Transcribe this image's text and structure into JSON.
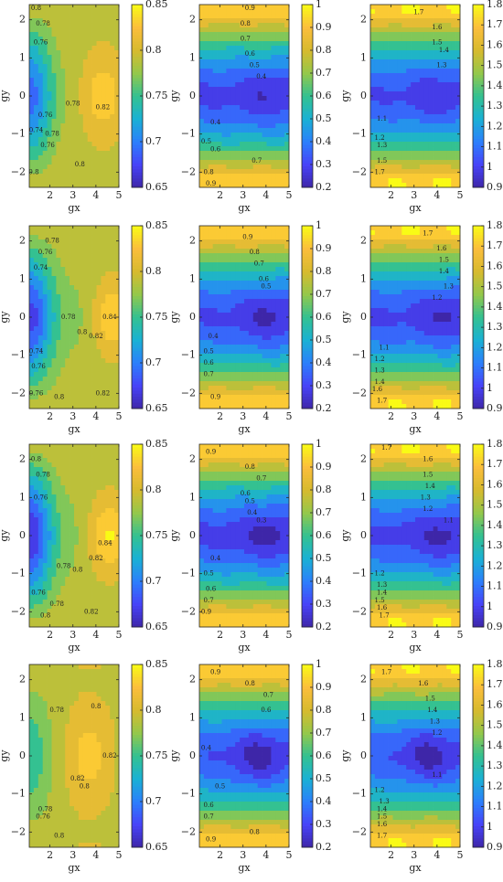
{
  "figure": {
    "rows": 4,
    "cols": 3,
    "xlabel": "gx",
    "ylabel": "gy"
  },
  "palette": [
    "#3e26a8",
    "#4743f8",
    "#2c7ffc",
    "#1ab1d4",
    "#34c191",
    "#94c84b",
    "#d7ba2e",
    "#fbbe3c",
    "#f9fb15"
  ],
  "columns": [
    {
      "clim": [
        0.65,
        0.85
      ],
      "cbar_ticks": [
        0.65,
        0.7,
        0.75,
        0.8,
        0.85
      ],
      "cbar_labels": [
        "0.65",
        "0.7",
        "0.75",
        "0.8",
        "0.85"
      ]
    },
    {
      "clim": [
        0.2,
        1.0
      ],
      "cbar_ticks": [
        0.2,
        0.3,
        0.4,
        0.5,
        0.6,
        0.7,
        0.8,
        0.9,
        1.0
      ],
      "cbar_labels": [
        "0.2",
        "0.3",
        "0.4",
        "0.5",
        "0.6",
        "0.7",
        "0.8",
        "0.9",
        "1"
      ]
    },
    {
      "clim": [
        0.9,
        1.8
      ],
      "cbar_ticks": [
        0.9,
        1.0,
        1.1,
        1.2,
        1.3,
        1.4,
        1.5,
        1.6,
        1.7,
        1.8
      ],
      "cbar_labels": [
        "0.9",
        "1",
        "1.1",
        "1.2",
        "1.3",
        "1.4",
        "1.5",
        "1.6",
        "1.7",
        "1.8"
      ]
    }
  ],
  "chart_data": [
    {
      "type": "heatmap",
      "row": 1,
      "col": 1,
      "model": "c1",
      "center_value": 0.69,
      "edge_value": 0.8,
      "side_min": 0.78,
      "right_value": 0.83,
      "hot_x": 4.3,
      "hot_value": 0.84,
      "blob_value": null,
      "contour_labels": [
        {
          "v": "0.8",
          "x": 1.4,
          "y": 2.3
        },
        {
          "v": "0.78",
          "x": 1.7,
          "y": 1.9
        },
        {
          "v": "0.76",
          "x": 1.6,
          "y": 1.4
        },
        {
          "v": "0.76",
          "x": 1.8,
          "y": -0.5
        },
        {
          "v": "0.74",
          "x": 1.4,
          "y": -0.9
        },
        {
          "v": "0.78",
          "x": 3.0,
          "y": -0.2
        },
        {
          "v": "0.78",
          "x": 2.1,
          "y": -1.0
        },
        {
          "v": "0.76",
          "x": 1.9,
          "y": -1.3
        },
        {
          "v": "0.82",
          "x": 4.3,
          "y": -0.3
        },
        {
          "v": "0.8",
          "x": 3.3,
          "y": -1.8
        },
        {
          "v": "0.8",
          "x": 1.3,
          "y": -2.0
        }
      ],
      "xlim": [
        1.1,
        5.0
      ],
      "ylim": [
        -2.4,
        2.4
      ],
      "xticks": [
        2,
        3,
        4,
        5
      ],
      "yticks": [
        -2,
        -1,
        0,
        1,
        2
      ]
    },
    {
      "type": "heatmap",
      "row": 1,
      "col": 2,
      "model": "c2",
      "center_value": 0.3,
      "edge_value": 0.95,
      "side_min": null,
      "right_value": 0.25,
      "hot_x": 4.0,
      "hot_value": 0.24,
      "blob_value": null,
      "contour_labels": [
        {
          "v": "0.9",
          "x": 3.3,
          "y": 2.3
        },
        {
          "v": "0.8",
          "x": 3.1,
          "y": 1.9
        },
        {
          "v": "0.7",
          "x": 3.1,
          "y": 1.5
        },
        {
          "v": "0.6",
          "x": 3.3,
          "y": 1.1
        },
        {
          "v": "0.5",
          "x": 3.5,
          "y": 0.8
        },
        {
          "v": "0.4",
          "x": 3.8,
          "y": 0.5
        },
        {
          "v": "0.4",
          "x": 1.8,
          "y": -0.7
        },
        {
          "v": "0.5",
          "x": 1.4,
          "y": -1.2
        },
        {
          "v": "0.6",
          "x": 1.8,
          "y": -1.4
        },
        {
          "v": "0.7",
          "x": 3.6,
          "y": -1.7
        },
        {
          "v": "0.8",
          "x": 1.5,
          "y": -2.0
        },
        {
          "v": "0.9",
          "x": 1.6,
          "y": -2.3
        }
      ],
      "xlim": [
        1.1,
        5.0
      ],
      "ylim": [
        -2.4,
        2.4
      ],
      "xticks": [
        2,
        3,
        4,
        5
      ],
      "yticks": [
        -2,
        -1,
        0,
        1,
        2
      ]
    },
    {
      "type": "heatmap",
      "row": 1,
      "col": 3,
      "model": "c3",
      "center_value": 1.03,
      "edge_value": 1.75,
      "side_min": null,
      "right_value": 0.98,
      "hot_x": 4.0,
      "hot_value": 0.96,
      "blob_value": null,
      "contour_labels": [
        {
          "v": "1.7",
          "x": 3.2,
          "y": 2.2
        },
        {
          "v": "1.6",
          "x": 4.0,
          "y": 1.8
        },
        {
          "v": "1.5",
          "x": 4.0,
          "y": 1.4
        },
        {
          "v": "1.4",
          "x": 4.3,
          "y": 1.2
        },
        {
          "v": "1.3",
          "x": 4.2,
          "y": 0.8
        },
        {
          "v": "1.1",
          "x": 1.6,
          "y": -0.6
        },
        {
          "v": "1.2",
          "x": 1.5,
          "y": -1.1
        },
        {
          "v": "1.3",
          "x": 1.6,
          "y": -1.3
        },
        {
          "v": "1.5",
          "x": 1.6,
          "y": -1.7
        },
        {
          "v": "1.7",
          "x": 1.5,
          "y": -2.0
        }
      ],
      "xlim": [
        1.1,
        5.0
      ],
      "ylim": [
        -2.4,
        2.4
      ],
      "xticks": [
        2,
        3,
        4,
        5
      ],
      "yticks": [
        -2,
        -1,
        0,
        1,
        2
      ]
    },
    {
      "type": "heatmap",
      "row": 2,
      "col": 1,
      "model": "c1",
      "center_value": 0.67,
      "edge_value": 0.8,
      "side_min": 0.77,
      "right_value": 0.83,
      "hot_x": 4.8,
      "hot_value": 0.845,
      "blob_value": null,
      "contour_labels": [
        {
          "v": "0.78",
          "x": 2.1,
          "y": 2.0
        },
        {
          "v": "0.76",
          "x": 1.8,
          "y": 1.7
        },
        {
          "v": "0.74",
          "x": 1.6,
          "y": 1.3
        },
        {
          "v": "0.74",
          "x": 1.4,
          "y": -0.9
        },
        {
          "v": "0.76",
          "x": 1.5,
          "y": -1.3
        },
        {
          "v": "0.78",
          "x": 2.8,
          "y": 0.0
        },
        {
          "v": "0.8",
          "x": 3.4,
          "y": -0.4
        },
        {
          "v": "0.82",
          "x": 4.0,
          "y": -0.5
        },
        {
          "v": "0.84",
          "x": 4.6,
          "y": 0.0
        },
        {
          "v": "0.76",
          "x": 1.4,
          "y": -2.0
        },
        {
          "v": "0.8",
          "x": 2.4,
          "y": -2.1
        },
        {
          "v": "0.82",
          "x": 4.3,
          "y": -2.0
        }
      ],
      "xlim": [
        1.1,
        5.0
      ],
      "ylim": [
        -2.4,
        2.4
      ],
      "xticks": [
        2,
        3,
        4,
        5
      ],
      "yticks": [
        -2,
        -1,
        0,
        1,
        2
      ]
    },
    {
      "type": "heatmap",
      "row": 2,
      "col": 2,
      "model": "c2",
      "center_value": 0.31,
      "edge_value": 0.95,
      "side_min": null,
      "right_value": 0.24,
      "hot_x": 4.1,
      "hot_value": 0.22,
      "blob_value": null,
      "contour_labels": [
        {
          "v": "0.9",
          "x": 3.2,
          "y": 2.1
        },
        {
          "v": "0.8",
          "x": 3.5,
          "y": 1.7
        },
        {
          "v": "0.7",
          "x": 3.7,
          "y": 1.4
        },
        {
          "v": "0.6",
          "x": 3.9,
          "y": 1.0
        },
        {
          "v": "0.5",
          "x": 4.0,
          "y": 0.8
        },
        {
          "v": "0.4",
          "x": 1.7,
          "y": -0.5
        },
        {
          "v": "0.5",
          "x": 1.5,
          "y": -0.9
        },
        {
          "v": "0.6",
          "x": 1.5,
          "y": -1.2
        },
        {
          "v": "0.7",
          "x": 1.5,
          "y": -1.5
        },
        {
          "v": "0.9",
          "x": 1.8,
          "y": -2.1
        }
      ],
      "xlim": [
        1.1,
        5.0
      ],
      "ylim": [
        -2.4,
        2.4
      ],
      "xticks": [
        2,
        3,
        4,
        5
      ],
      "yticks": [
        -2,
        -1,
        0,
        1,
        2
      ]
    },
    {
      "type": "heatmap",
      "row": 2,
      "col": 3,
      "model": "c3",
      "center_value": 1.02,
      "edge_value": 1.75,
      "side_min": null,
      "right_value": 0.95,
      "hot_x": 4.4,
      "hot_value": 0.93,
      "blob_value": null,
      "contour_labels": [
        {
          "v": "1.7",
          "x": 3.6,
          "y": 2.2
        },
        {
          "v": "1.6",
          "x": 4.2,
          "y": 1.8
        },
        {
          "v": "1.5",
          "x": 4.3,
          "y": 1.5
        },
        {
          "v": "1.4",
          "x": 4.3,
          "y": 1.2
        },
        {
          "v": "1.3",
          "x": 4.5,
          "y": 0.8
        },
        {
          "v": "1.2",
          "x": 4.0,
          "y": 0.5
        },
        {
          "v": "1.1",
          "x": 1.7,
          "y": -0.8
        },
        {
          "v": "1.2",
          "x": 1.5,
          "y": -1.1
        },
        {
          "v": "1.3",
          "x": 1.5,
          "y": -1.4
        },
        {
          "v": "1.4",
          "x": 1.5,
          "y": -1.7
        },
        {
          "v": "1.6",
          "x": 1.4,
          "y": -1.9
        },
        {
          "v": "1.7",
          "x": 1.6,
          "y": -2.2
        }
      ],
      "xlim": [
        1.1,
        5.0
      ],
      "ylim": [
        -2.4,
        2.4
      ],
      "xticks": [
        2,
        3,
        4,
        5
      ],
      "yticks": [
        -2,
        -1,
        0,
        1,
        2
      ]
    },
    {
      "type": "heatmap",
      "row": 3,
      "col": 1,
      "model": "c1",
      "center_value": 0.66,
      "edge_value": 0.8,
      "side_min": 0.77,
      "right_value": 0.83,
      "hot_x": 4.6,
      "hot_value": 0.85,
      "blob_value": null,
      "contour_labels": [
        {
          "v": "0.8",
          "x": 1.4,
          "y": 2.0
        },
        {
          "v": "0.78",
          "x": 1.7,
          "y": 1.6
        },
        {
          "v": "0.76",
          "x": 1.6,
          "y": 1.0
        },
        {
          "v": "0.78",
          "x": 2.6,
          "y": -0.8
        },
        {
          "v": "0.8",
          "x": 3.2,
          "y": -0.9
        },
        {
          "v": "0.82",
          "x": 4.0,
          "y": -0.6
        },
        {
          "v": "0.84",
          "x": 4.4,
          "y": -0.2
        },
        {
          "v": "0.76",
          "x": 1.5,
          "y": -1.5
        },
        {
          "v": "0.78",
          "x": 2.3,
          "y": -1.8
        },
        {
          "v": "0.8",
          "x": 1.8,
          "y": -2.1
        },
        {
          "v": "0.82",
          "x": 3.8,
          "y": -2.0
        }
      ],
      "xlim": [
        1.1,
        5.0
      ],
      "ylim": [
        -2.4,
        2.4
      ],
      "xticks": [
        2,
        3,
        4,
        5
      ],
      "yticks": [
        -2,
        -1,
        0,
        1,
        2
      ]
    },
    {
      "type": "heatmap",
      "row": 3,
      "col": 2,
      "model": "c2",
      "center_value": 0.3,
      "edge_value": 0.95,
      "side_min": null,
      "right_value": 0.24,
      "hot_x": 4.1,
      "hot_value": 0.21,
      "blob_value": 0.24,
      "contour_labels": [
        {
          "v": "0.9",
          "x": 1.6,
          "y": 2.2
        },
        {
          "v": "0.8",
          "x": 3.3,
          "y": 1.8
        },
        {
          "v": "0.7",
          "x": 3.8,
          "y": 1.5
        },
        {
          "v": "0.6",
          "x": 3.1,
          "y": 1.1
        },
        {
          "v": "0.5",
          "x": 3.3,
          "y": 0.9
        },
        {
          "v": "0.4",
          "x": 3.4,
          "y": 0.6
        },
        {
          "v": "0.3",
          "x": 3.8,
          "y": 0.4
        },
        {
          "v": "0.4",
          "x": 1.8,
          "y": -0.6
        },
        {
          "v": "0.5",
          "x": 1.5,
          "y": -1.0
        },
        {
          "v": "0.6",
          "x": 1.6,
          "y": -1.4
        },
        {
          "v": "0.7",
          "x": 1.5,
          "y": -1.7
        },
        {
          "v": "0.9",
          "x": 1.4,
          "y": -2.0
        }
      ],
      "xlim": [
        1.1,
        5.0
      ],
      "ylim": [
        -2.4,
        2.4
      ],
      "xticks": [
        2,
        3,
        4,
        5
      ],
      "yticks": [
        -2,
        -1,
        0,
        1,
        2
      ]
    },
    {
      "type": "heatmap",
      "row": 3,
      "col": 3,
      "model": "c3",
      "center_value": 1.02,
      "edge_value": 1.75,
      "side_min": null,
      "right_value": 0.95,
      "hot_x": 4.2,
      "hot_value": 0.92,
      "blob_value": 0.98,
      "contour_labels": [
        {
          "v": "1.7",
          "x": 1.8,
          "y": 2.3
        },
        {
          "v": "1.6",
          "x": 3.6,
          "y": 2.0
        },
        {
          "v": "1.5",
          "x": 3.6,
          "y": 1.6
        },
        {
          "v": "1.4",
          "x": 3.7,
          "y": 1.3
        },
        {
          "v": "1.3",
          "x": 3.5,
          "y": 1.0
        },
        {
          "v": "1.2",
          "x": 3.6,
          "y": 0.7
        },
        {
          "v": "1.1",
          "x": 4.5,
          "y": 0.4
        },
        {
          "v": "1.2",
          "x": 1.5,
          "y": -1.0
        },
        {
          "v": "1.3",
          "x": 1.6,
          "y": -1.3
        },
        {
          "v": "1.4",
          "x": 1.6,
          "y": -1.5
        },
        {
          "v": "1.5",
          "x": 1.5,
          "y": -1.7
        },
        {
          "v": "1.6",
          "x": 1.6,
          "y": -1.9
        },
        {
          "v": "1.7",
          "x": 1.7,
          "y": -2.1
        }
      ],
      "xlim": [
        1.1,
        5.0
      ],
      "ylim": [
        -2.4,
        2.4
      ],
      "xticks": [
        2,
        3,
        4,
        5
      ],
      "yticks": [
        -2,
        -1,
        0,
        1,
        2
      ]
    },
    {
      "type": "heatmap",
      "row": 4,
      "col": 1,
      "model": "c1",
      "center_value": 0.745,
      "edge_value": 0.8,
      "side_min": 0.79,
      "right_value": 0.82,
      "hot_x": 3.7,
      "hot_value": 0.835,
      "blob_value": null,
      "contour_labels": [
        {
          "v": "0.8",
          "x": 4.0,
          "y": 1.3
        },
        {
          "v": "0.78",
          "x": 2.3,
          "y": 1.2
        },
        {
          "v": "0.82",
          "x": 4.6,
          "y": 0.0
        },
        {
          "v": "0.82",
          "x": 3.2,
          "y": -0.6
        },
        {
          "v": "0.8",
          "x": 3.5,
          "y": -0.8
        },
        {
          "v": "0.78",
          "x": 1.8,
          "y": -1.4
        },
        {
          "v": "0.76",
          "x": 1.7,
          "y": -1.6
        },
        {
          "v": "0.8",
          "x": 2.4,
          "y": -2.1
        }
      ],
      "xlim": [
        1.1,
        5.0
      ],
      "ylim": [
        -2.4,
        2.4
      ],
      "xticks": [
        2,
        3,
        4,
        5
      ],
      "yticks": [
        -2,
        -1,
        0,
        1,
        2
      ]
    },
    {
      "type": "heatmap",
      "row": 4,
      "col": 2,
      "model": "c2",
      "center_value": 0.33,
      "edge_value": 0.95,
      "side_min": null,
      "right_value": 0.25,
      "hot_x": 3.7,
      "hot_value": 0.2,
      "blob_value": null,
      "contour_labels": [
        {
          "v": "0.9",
          "x": 1.8,
          "y": 2.2
        },
        {
          "v": "0.8",
          "x": 3.3,
          "y": 1.9
        },
        {
          "v": "0.7",
          "x": 4.1,
          "y": 1.6
        },
        {
          "v": "0.6",
          "x": 4.0,
          "y": 1.2
        },
        {
          "v": "0.4",
          "x": 1.4,
          "y": 0.2
        },
        {
          "v": "0.5",
          "x": 2.0,
          "y": -0.8
        },
        {
          "v": "0.6",
          "x": 1.5,
          "y": -1.3
        },
        {
          "v": "0.7",
          "x": 1.5,
          "y": -1.6
        },
        {
          "v": "0.8",
          "x": 3.5,
          "y": -2.0
        },
        {
          "v": "0.9",
          "x": 1.6,
          "y": -2.2
        }
      ],
      "xlim": [
        1.1,
        5.0
      ],
      "ylim": [
        -2.4,
        2.4
      ],
      "xticks": [
        2,
        3,
        4,
        5
      ],
      "yticks": [
        -2,
        -1,
        0,
        1,
        2
      ]
    },
    {
      "type": "heatmap",
      "row": 4,
      "col": 3,
      "model": "c3",
      "center_value": 1.05,
      "edge_value": 1.75,
      "side_min": null,
      "right_value": 0.96,
      "hot_x": 3.7,
      "hot_value": 0.9,
      "blob_value": null,
      "contour_labels": [
        {
          "v": "1.7",
          "x": 1.8,
          "y": 2.2
        },
        {
          "v": "1.6",
          "x": 3.4,
          "y": 1.9
        },
        {
          "v": "1.5",
          "x": 3.7,
          "y": 1.5
        },
        {
          "v": "1.4",
          "x": 3.8,
          "y": 1.2
        },
        {
          "v": "1.3",
          "x": 3.9,
          "y": 0.9
        },
        {
          "v": "1.2",
          "x": 4.0,
          "y": 0.6
        },
        {
          "v": "1.1",
          "x": 4.0,
          "y": -0.5
        },
        {
          "v": "1.2",
          "x": 1.5,
          "y": -0.9
        },
        {
          "v": "1.3",
          "x": 1.7,
          "y": -1.2
        },
        {
          "v": "1.4",
          "x": 1.6,
          "y": -1.4
        },
        {
          "v": "1.5",
          "x": 1.6,
          "y": -1.6
        },
        {
          "v": "1.6",
          "x": 1.6,
          "y": -1.8
        },
        {
          "v": "1.7",
          "x": 1.6,
          "y": -2.1
        }
      ],
      "xlim": [
        1.1,
        5.0
      ],
      "ylim": [
        -2.4,
        2.4
      ],
      "xticks": [
        2,
        3,
        4,
        5
      ],
      "yticks": [
        -2,
        -1,
        0,
        1,
        2
      ]
    }
  ]
}
